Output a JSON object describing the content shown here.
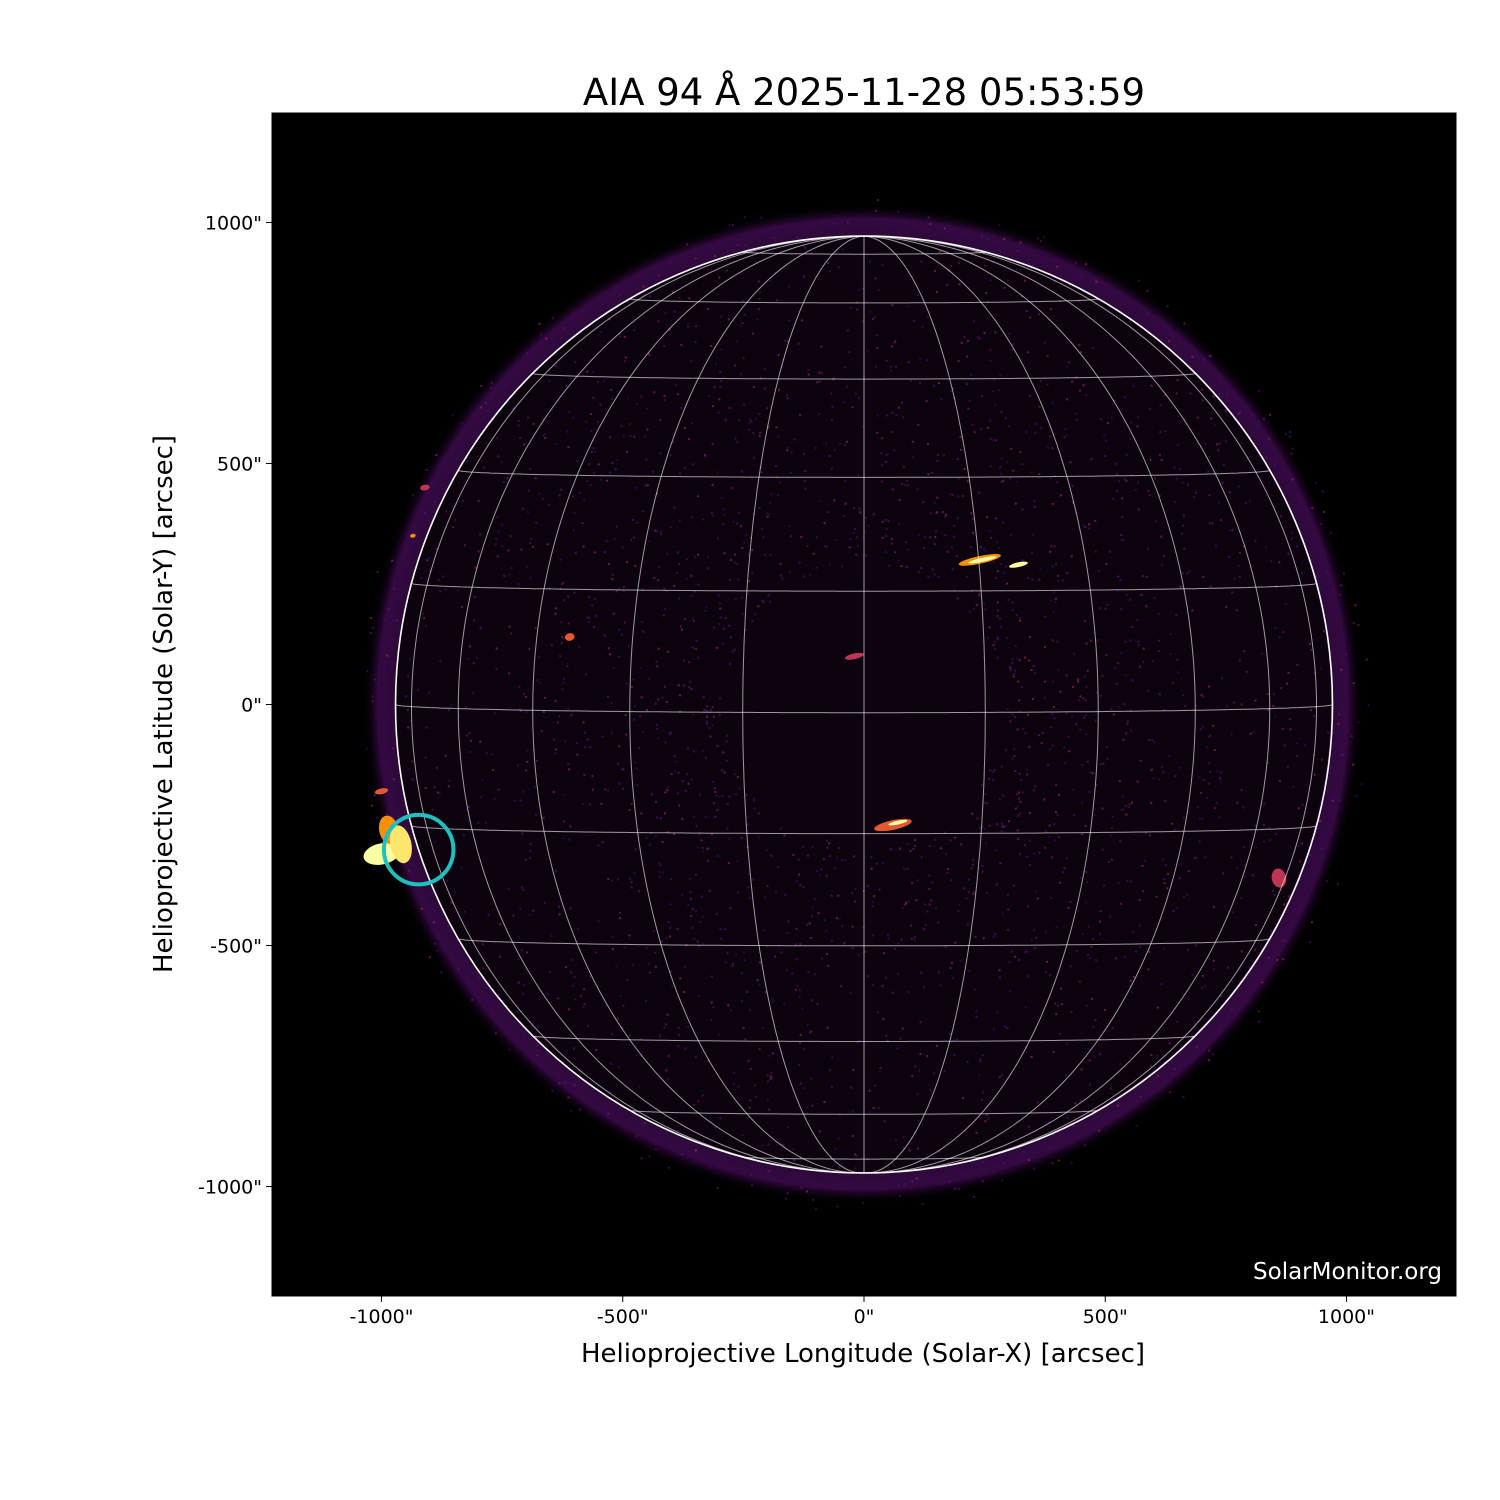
{
  "chart_data": {
    "type": "image",
    "title": "AIA 94 Å 2025-11-28 05:53:59",
    "xlabel": "Helioprojective Longitude (Solar-X) [arcsec]",
    "ylabel": "Helioprojective Latitude (Solar-Y) [arcsec]",
    "xlim": [
      -1227,
      1227
    ],
    "ylim": [
      -1227,
      1227
    ],
    "xticks": [
      -1000,
      -500,
      0,
      500,
      1000
    ],
    "yticks": [
      -1000,
      -500,
      0,
      500,
      1000
    ],
    "xtick_labels": [
      "-1000\"",
      "-500\"",
      "0\"",
      "500\"",
      "1000\""
    ],
    "ytick_labels": [
      "-1000\"",
      "-500\"",
      "0\"",
      "500\"",
      "1000\""
    ],
    "colormap": "inferno",
    "background_color": "#000000",
    "solar_radius_arcsec": 971,
    "grid": {
      "on": true,
      "spacing_deg": 15,
      "color": "#ffffff"
    },
    "marker": {
      "shape": "circle",
      "center": [
        -923,
        -301
      ],
      "radius_arcsec": 72,
      "color": "#1fbfbf"
    },
    "watermark": "SolarMonitor.org"
  }
}
